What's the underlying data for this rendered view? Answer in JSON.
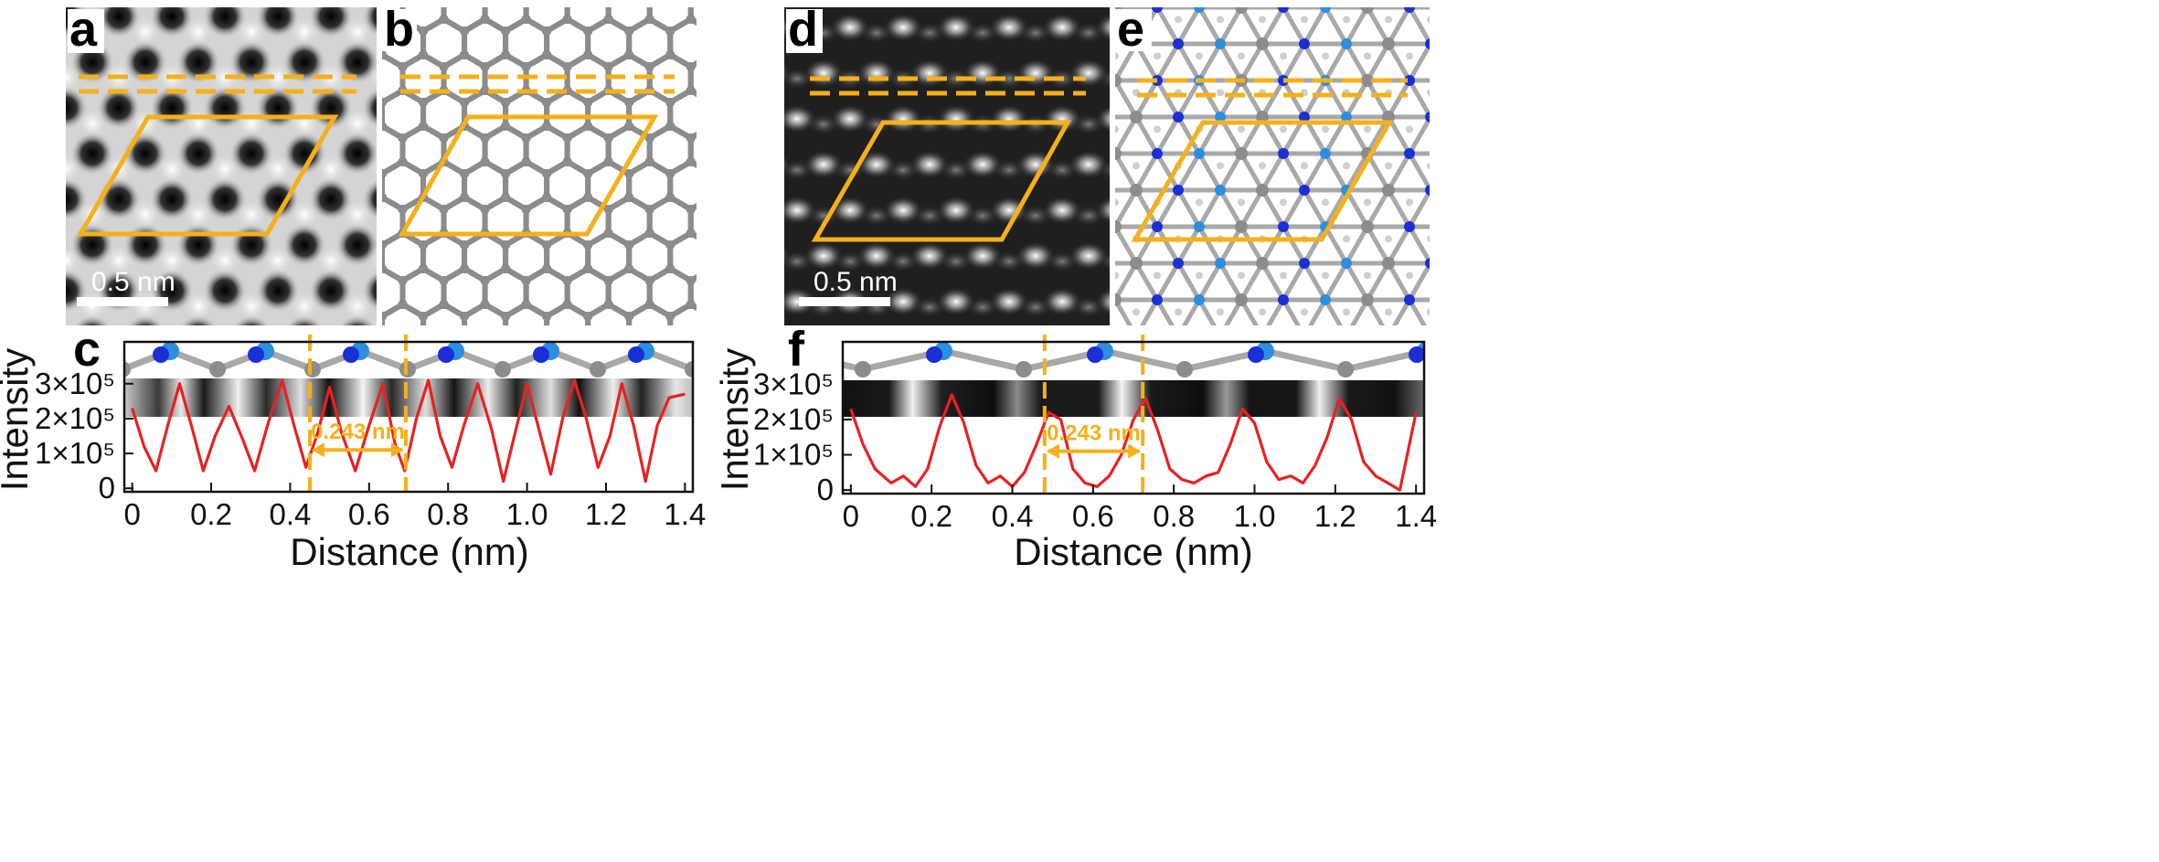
{
  "figure": {
    "panels": [
      {
        "letter": "a",
        "kind": "stem-image",
        "scale_bar": "0.5 nm",
        "lattice": "bright",
        "background": "#d9d9d9"
      },
      {
        "letter": "b",
        "kind": "atomic-model",
        "lattice": "honeycomb"
      },
      {
        "letter": "d",
        "kind": "stem-image",
        "scale_bar": "0.5 nm",
        "lattice": "dark",
        "background": "#1f1f1f"
      },
      {
        "letter": "e",
        "kind": "atomic-model",
        "lattice": "dense"
      }
    ]
  },
  "colors": {
    "outline": "#f5b01a",
    "profile": "#e62222",
    "atom_gray": "#8c8c8c",
    "atom_dark_blue": "#1a2fd6",
    "atom_light_blue": "#2b8fe0",
    "axis": "#111111"
  },
  "chart_data": [
    {
      "panel": "c",
      "type": "line",
      "xlabel": "Distance (nm)",
      "ylabel": "Intensity",
      "xlim": [
        -0.02,
        1.42
      ],
      "ylim": [
        -10000,
        420000
      ],
      "xticks": [
        "0",
        "0.2",
        "0.4",
        "0.6",
        "0.8",
        "1.0",
        "1.2",
        "1.4"
      ],
      "yticks": [
        "0",
        "1×10⁵",
        "2×10⁵",
        "3×10⁵"
      ],
      "annotation": "0.243 nm",
      "marker_lines_x": [
        0.45,
        0.693
      ],
      "series": [
        {
          "x": [
            0,
            0.03,
            0.06,
            0.09,
            0.12,
            0.15,
            0.18,
            0.21,
            0.245,
            0.28,
            0.31,
            0.345,
            0.38,
            0.41,
            0.44,
            0.47,
            0.5,
            0.53,
            0.565,
            0.6,
            0.635,
            0.665,
            0.69,
            0.72,
            0.75,
            0.78,
            0.81,
            0.84,
            0.875,
            0.91,
            0.94,
            0.97,
            1.0,
            1.03,
            1.06,
            1.09,
            1.12,
            1.15,
            1.18,
            1.21,
            1.24,
            1.27,
            1.3,
            1.33,
            1.36,
            1.4
          ],
          "y": [
            230000,
            120000,
            50000,
            180000,
            300000,
            180000,
            50000,
            150000,
            235000,
            140000,
            50000,
            190000,
            310000,
            180000,
            60000,
            160000,
            290000,
            160000,
            50000,
            180000,
            300000,
            130000,
            50000,
            200000,
            310000,
            150000,
            60000,
            180000,
            300000,
            170000,
            20000,
            160000,
            300000,
            170000,
            40000,
            200000,
            310000,
            200000,
            60000,
            150000,
            300000,
            180000,
            20000,
            180000,
            260000,
            270000
          ]
        }
      ]
    },
    {
      "panel": "f",
      "type": "line",
      "xlabel": "Distance (nm)",
      "ylabel": "Intensity",
      "xlim": [
        -0.02,
        1.42
      ],
      "ylim": [
        -10000,
        420000
      ],
      "xticks": [
        "0",
        "0.2",
        "0.4",
        "0.6",
        "0.8",
        "1.0",
        "1.2",
        "1.4"
      ],
      "yticks": [
        "0",
        "1×10⁵",
        "2×10⁵",
        "3×10⁵"
      ],
      "annotation": "0.243 nm",
      "marker_lines_x": [
        0.48,
        0.723
      ],
      "series": [
        {
          "x": [
            0,
            0.03,
            0.06,
            0.1,
            0.13,
            0.16,
            0.19,
            0.22,
            0.25,
            0.28,
            0.31,
            0.34,
            0.37,
            0.4,
            0.43,
            0.46,
            0.49,
            0.52,
            0.55,
            0.58,
            0.61,
            0.64,
            0.67,
            0.7,
            0.73,
            0.76,
            0.79,
            0.82,
            0.85,
            0.88,
            0.91,
            0.94,
            0.97,
            1.0,
            1.03,
            1.06,
            1.09,
            1.12,
            1.15,
            1.18,
            1.21,
            1.24,
            1.27,
            1.3,
            1.33,
            1.36,
            1.4
          ],
          "y": [
            230000,
            130000,
            60000,
            20000,
            40000,
            10000,
            60000,
            180000,
            270000,
            190000,
            70000,
            20000,
            40000,
            10000,
            50000,
            130000,
            220000,
            200000,
            60000,
            20000,
            10000,
            40000,
            100000,
            200000,
            260000,
            170000,
            60000,
            30000,
            20000,
            40000,
            50000,
            130000,
            230000,
            190000,
            80000,
            30000,
            40000,
            20000,
            70000,
            150000,
            260000,
            200000,
            80000,
            40000,
            20000,
            0,
            220000
          ]
        }
      ]
    }
  ]
}
